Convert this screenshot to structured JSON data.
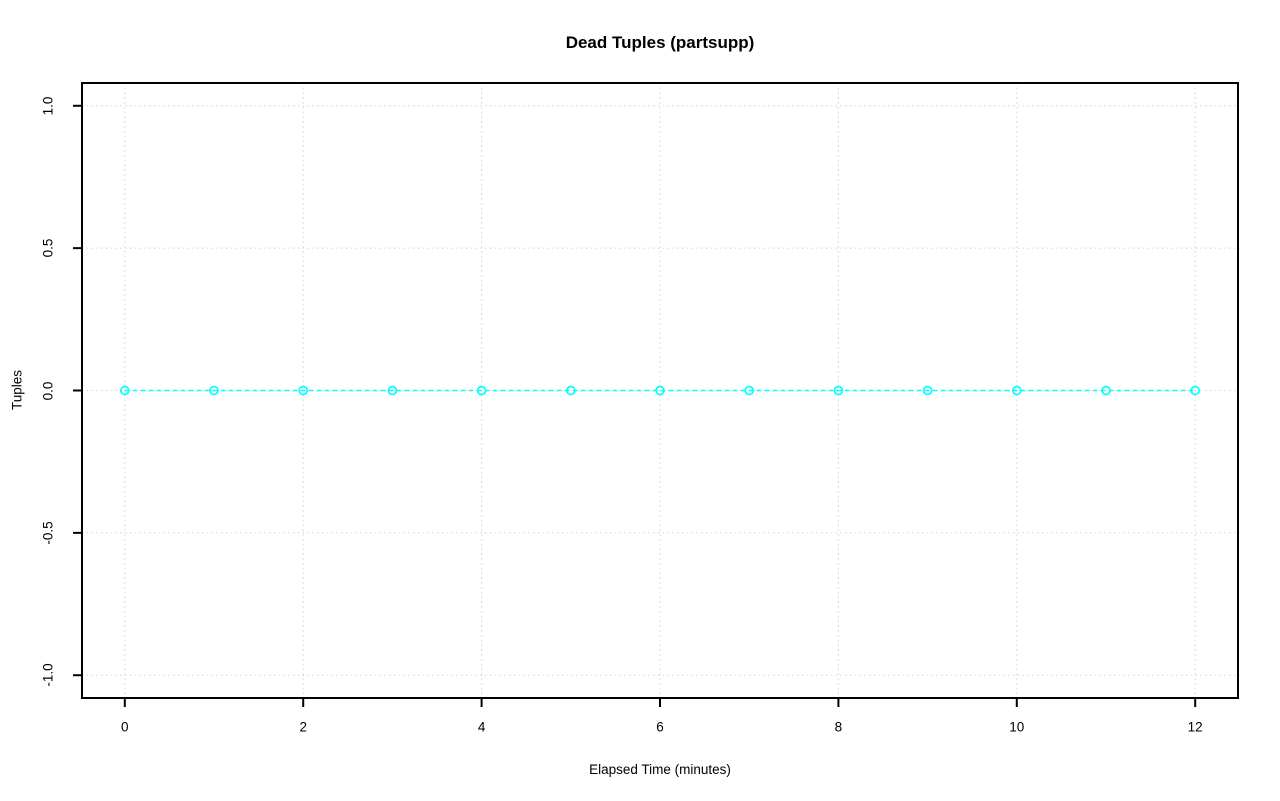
{
  "chart_data": {
    "type": "line",
    "title": "Dead Tuples (partsupp)",
    "xlabel": "Elapsed Time (minutes)",
    "ylabel": "Tuples",
    "series": [
      {
        "name": "dead-tuples-partsupp",
        "x": [
          0,
          1,
          2,
          3,
          4,
          5,
          6,
          7,
          8,
          9,
          10,
          11,
          12
        ],
        "y": [
          0,
          0,
          0,
          0,
          0,
          0,
          0,
          0,
          0,
          0,
          0,
          0,
          0
        ]
      }
    ],
    "xlim": [
      -0.48,
      12.48
    ],
    "ylim": [
      -1.08,
      1.08
    ],
    "x_ticks": [
      0,
      2,
      4,
      6,
      8,
      10,
      12
    ],
    "x_tick_labels": [
      "0",
      "2",
      "4",
      "6",
      "8",
      "10",
      "12"
    ],
    "y_ticks": [
      -1.0,
      -0.5,
      0.0,
      0.5,
      1.0
    ],
    "y_tick_labels": [
      "-1.0",
      "-0.5",
      "0.0",
      "0.5",
      "1.0"
    ],
    "grid": true,
    "grid_style": "dotted",
    "line_style": "dashed",
    "marker": "open-circle",
    "legend": "none",
    "colors": {
      "series": "#00FFFF",
      "grid": "#D3D3D3",
      "axis": "#000000",
      "background": "#FFFFFF"
    }
  }
}
